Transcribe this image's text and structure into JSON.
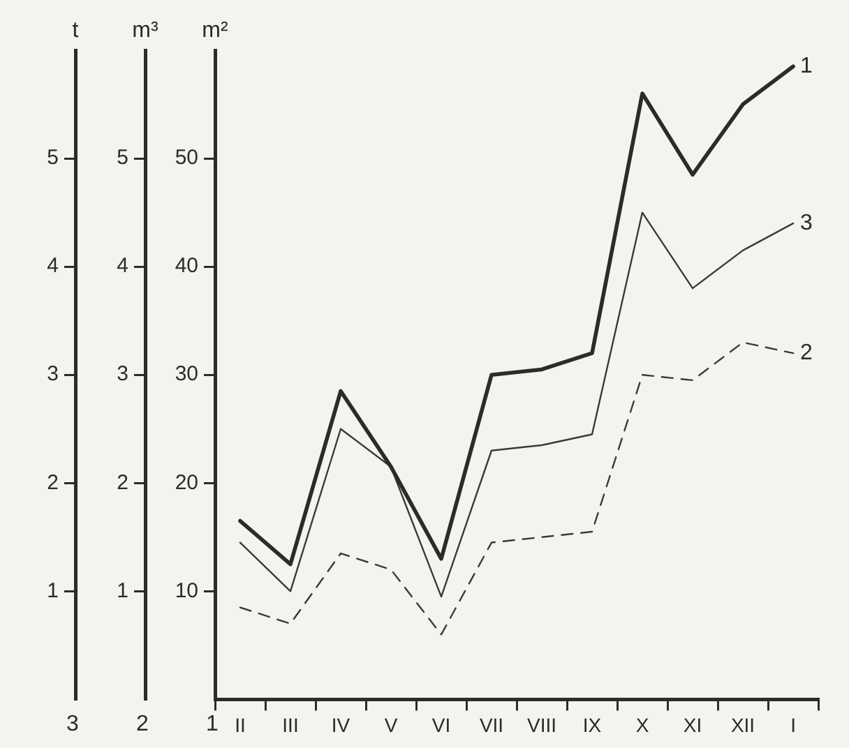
{
  "chart_data": {
    "type": "line",
    "ylabel": "m²",
    "y2label": "m³",
    "y3label": "t",
    "categories": [
      "II",
      "III",
      "IV",
      "V",
      "VI",
      "VII",
      "VIII",
      "IX",
      "X",
      "XI",
      "XII",
      "I"
    ],
    "ylim": [
      0,
      60
    ],
    "yticks": [
      10,
      20,
      30,
      40,
      50
    ],
    "y2lim": [
      0,
      6
    ],
    "y2ticks": [
      1,
      2,
      3,
      4,
      5
    ],
    "y3lim": [
      0,
      6
    ],
    "y3ticks": [
      1,
      2,
      3,
      4,
      5
    ],
    "grid": false,
    "legend": false,
    "marker": "none",
    "series": [
      {
        "name": "1",
        "color": "#2b2b2b",
        "axis": "y",
        "line_style": "solid",
        "values": [
          16.5,
          12.5,
          28.5,
          21.5,
          13,
          30,
          30.5,
          32,
          56,
          48.5,
          55,
          58.5
        ]
      },
      {
        "name": "3",
        "color": "#3a3a3a",
        "axis": "y3",
        "line_style": "solid",
        "values": [
          1.45,
          1.0,
          2.5,
          2.15,
          0.95,
          2.3,
          2.35,
          2.45,
          4.5,
          3.8,
          4.15,
          4.4
        ]
      },
      {
        "name": "2",
        "color": "#3a3a3a",
        "axis": "y2",
        "line_style": "dashed",
        "values": [
          0.85,
          0.7,
          1.35,
          1.2,
          0.6,
          1.45,
          1.5,
          1.55,
          3.0,
          2.95,
          3.3,
          3.2
        ]
      }
    ]
  }
}
